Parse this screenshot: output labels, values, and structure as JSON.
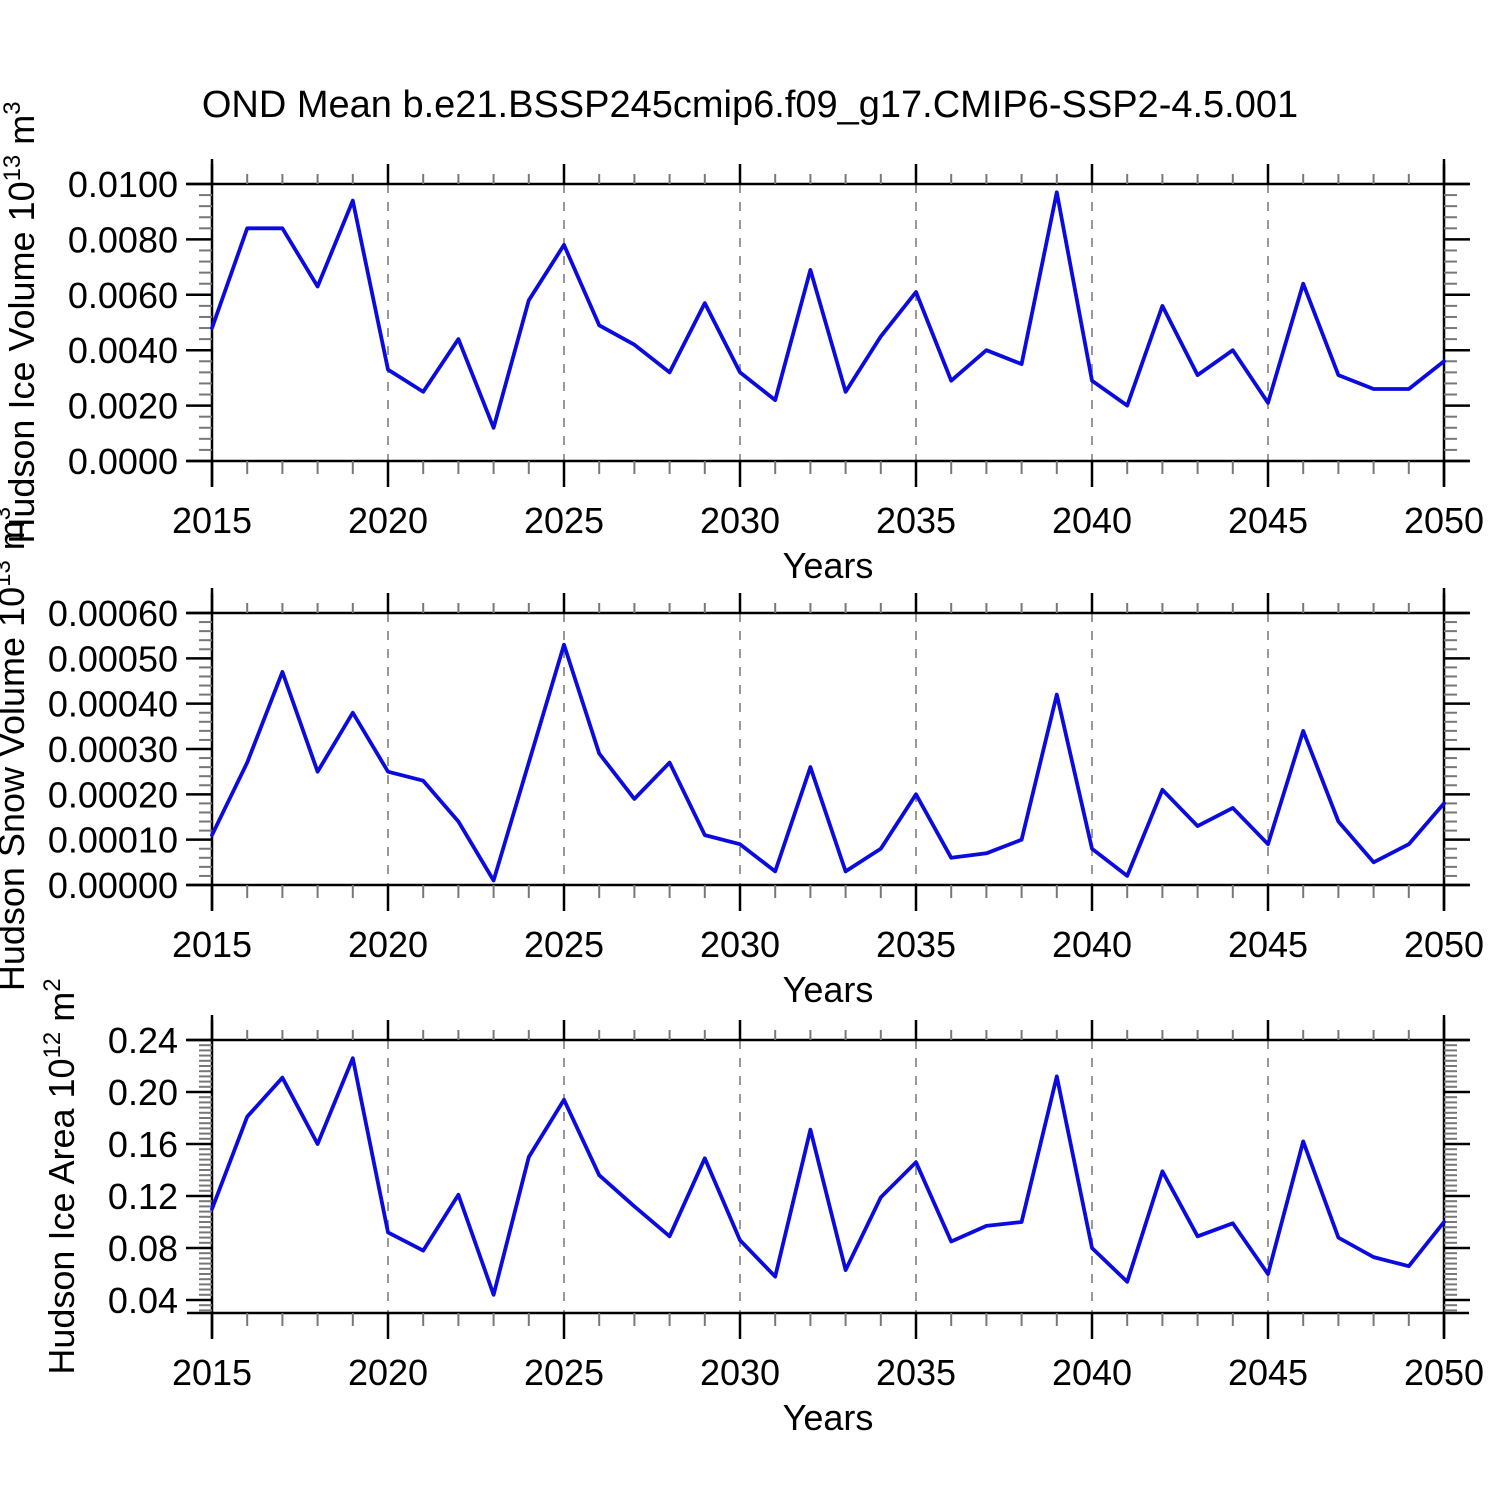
{
  "title": "OND Mean b.e21.BSSP245cmip6.f09_g17.CMIP6-SSP2-4.5.001",
  "colors": {
    "line": "#0b0bdf",
    "grid": "#999999",
    "axis": "#000000",
    "minor_tick": "#777777",
    "text": "#000000",
    "background": "#ffffff"
  },
  "chart_data": [
    {
      "type": "line",
      "name": "hudson-ice-volume",
      "ylabel": "Hudson Ice Volume 10^13 m^3",
      "ylabel_parts": [
        {
          "t": "Hudson Ice Volume 10"
        },
        {
          "t": "13",
          "sup": true
        },
        {
          "t": " m"
        },
        {
          "t": "3",
          "sup": true
        }
      ],
      "xlabel": "Years",
      "xlim": [
        2015,
        2050
      ],
      "ylim": [
        0,
        0.01
      ],
      "xticks": [
        2015,
        2020,
        2025,
        2030,
        2035,
        2040,
        2045,
        2050
      ],
      "xminor_step": 1,
      "grid_years": [
        2020,
        2025,
        2030,
        2035,
        2040,
        2045
      ],
      "yticks": [
        0,
        0.002,
        0.004,
        0.006,
        0.008,
        0.01
      ],
      "ytick_labels": [
        "0.0000",
        "0.0020",
        "0.0040",
        "0.0060",
        "0.0080",
        "0.0100"
      ],
      "yminor_step": 0.0004,
      "grid_on": "x-dashed",
      "legend": "none",
      "x": [
        2015,
        2016,
        2017,
        2018,
        2019,
        2020,
        2021,
        2022,
        2023,
        2024,
        2025,
        2026,
        2027,
        2028,
        2029,
        2030,
        2031,
        2032,
        2033,
        2034,
        2035,
        2036,
        2037,
        2038,
        2039,
        2040,
        2041,
        2042,
        2043,
        2044,
        2045,
        2046,
        2047,
        2048,
        2049,
        2050
      ],
      "values": [
        0.0048,
        0.0084,
        0.0084,
        0.0063,
        0.0094,
        0.0033,
        0.0025,
        0.0044,
        0.0012,
        0.0058,
        0.0078,
        0.0049,
        0.0042,
        0.0032,
        0.0057,
        0.0032,
        0.0022,
        0.0069,
        0.0025,
        0.0045,
        0.0061,
        0.0029,
        0.004,
        0.0035,
        0.0097,
        0.0029,
        0.002,
        0.0056,
        0.0031,
        0.004,
        0.0021,
        0.0064,
        0.0031,
        0.0026,
        0.0026,
        0.0036
      ]
    },
    {
      "type": "line",
      "name": "hudson-snow-volume",
      "ylabel": "Hudson Snow Volume 10^13 m^3",
      "ylabel_parts": [
        {
          "t": "Hudson Snow Volume 10"
        },
        {
          "t": "13",
          "sup": true
        },
        {
          "t": " m"
        },
        {
          "t": "3",
          "sup": true
        }
      ],
      "xlabel": "Years",
      "xlim": [
        2015,
        2050
      ],
      "ylim": [
        0,
        0.0006
      ],
      "xticks": [
        2015,
        2020,
        2025,
        2030,
        2035,
        2040,
        2045,
        2050
      ],
      "xminor_step": 1,
      "grid_years": [
        2020,
        2025,
        2030,
        2035,
        2040,
        2045
      ],
      "yticks": [
        0,
        0.0001,
        0.0002,
        0.0003,
        0.0004,
        0.0005,
        0.0006
      ],
      "ytick_labels": [
        "0.00000",
        "0.00010",
        "0.00020",
        "0.00030",
        "0.00040",
        "0.00050",
        "0.00060"
      ],
      "yminor_step": 2e-05,
      "grid_on": "x-dashed",
      "legend": "none",
      "x": [
        2015,
        2016,
        2017,
        2018,
        2019,
        2020,
        2021,
        2022,
        2023,
        2024,
        2025,
        2026,
        2027,
        2028,
        2029,
        2030,
        2031,
        2032,
        2033,
        2034,
        2035,
        2036,
        2037,
        2038,
        2039,
        2040,
        2041,
        2042,
        2043,
        2044,
        2045,
        2046,
        2047,
        2048,
        2049,
        2050
      ],
      "values": [
        0.00011,
        0.00027,
        0.00047,
        0.00025,
        0.00038,
        0.00025,
        0.00023,
        0.00014,
        1e-05,
        0.00027,
        0.00053,
        0.00029,
        0.00019,
        0.00027,
        0.00011,
        9e-05,
        3e-05,
        0.00026,
        3e-05,
        8e-05,
        0.0002,
        6e-05,
        7e-05,
        0.0001,
        0.00042,
        8e-05,
        2e-05,
        0.00021,
        0.00013,
        0.00017,
        9e-05,
        0.00034,
        0.00014,
        5e-05,
        9e-05,
        0.00018
      ]
    },
    {
      "type": "line",
      "name": "hudson-ice-area",
      "ylabel": "Hudson Ice Area 10^12 m^2",
      "ylabel_parts": [
        {
          "t": "Hudson Ice Area 10"
        },
        {
          "t": "12",
          "sup": true
        },
        {
          "t": " m"
        },
        {
          "t": "2",
          "sup": true
        }
      ],
      "xlabel": "Years",
      "xlim": [
        2015,
        2050
      ],
      "ylim": [
        0.03,
        0.24
      ],
      "xticks": [
        2015,
        2020,
        2025,
        2030,
        2035,
        2040,
        2045,
        2050
      ],
      "xminor_step": 1,
      "grid_years": [
        2020,
        2025,
        2030,
        2035,
        2040,
        2045
      ],
      "yticks": [
        0.04,
        0.08,
        0.12,
        0.16,
        0.2,
        0.24
      ],
      "ytick_labels": [
        "0.04",
        "0.08",
        "0.12",
        "0.16",
        "0.20",
        "0.24"
      ],
      "yminor_step": 0.004,
      "grid_on": "x-dashed",
      "legend": "none",
      "x": [
        2015,
        2016,
        2017,
        2018,
        2019,
        2020,
        2021,
        2022,
        2023,
        2024,
        2025,
        2026,
        2027,
        2028,
        2029,
        2030,
        2031,
        2032,
        2033,
        2034,
        2035,
        2036,
        2037,
        2038,
        2039,
        2040,
        2041,
        2042,
        2043,
        2044,
        2045,
        2046,
        2047,
        2048,
        2049,
        2050
      ],
      "values": [
        0.11,
        0.181,
        0.211,
        0.16,
        0.226,
        0.092,
        0.078,
        0.121,
        0.044,
        0.15,
        0.194,
        0.136,
        0.112,
        0.089,
        0.149,
        0.086,
        0.058,
        0.171,
        0.063,
        0.119,
        0.146,
        0.085,
        0.097,
        0.1,
        0.212,
        0.08,
        0.054,
        0.139,
        0.089,
        0.099,
        0.06,
        0.162,
        0.088,
        0.073,
        0.066,
        0.1
      ]
    }
  ]
}
